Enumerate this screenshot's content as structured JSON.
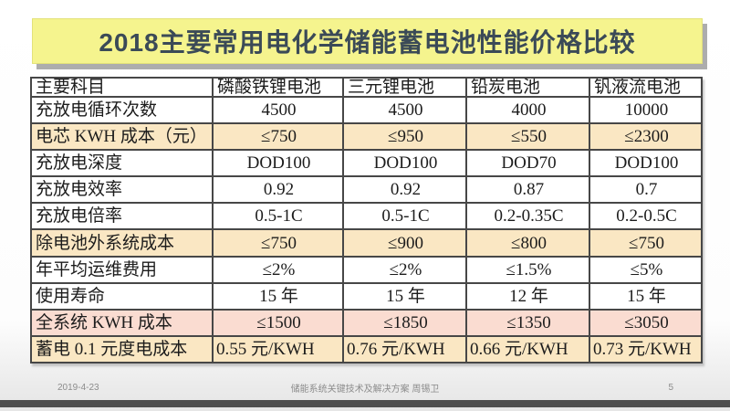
{
  "title": "2018主要常用电化学储能蓄电池性能价格比较",
  "table": {
    "headers": [
      "主要科目",
      "磷酸铁锂电池",
      "三元锂电池",
      "铅炭电池",
      "钒液流电池"
    ],
    "rows": [
      {
        "label": "充放电循环次数",
        "values": [
          "4500",
          "4500",
          "4000",
          "10000"
        ]
      },
      {
        "label": "电芯 KWH 成本（元）",
        "values": [
          "≤750",
          "≤950",
          "≤550",
          "≤2300"
        ]
      },
      {
        "label": "充放电深度",
        "values": [
          "DOD100",
          "DOD100",
          "DOD70",
          "DOD100"
        ]
      },
      {
        "label": "充放电效率",
        "values": [
          "0.92",
          "0.92",
          "0.87",
          "0.7"
        ]
      },
      {
        "label": "充放电倍率",
        "values": [
          "0.5-1C",
          "0.5-1C",
          "0.2-0.35C",
          "0.2-0.5C"
        ]
      },
      {
        "label": "除电池外系统成本",
        "values": [
          "≤750",
          "≤900",
          "≤800",
          "≤750"
        ]
      },
      {
        "label": "年平均运维费用",
        "values": [
          "≤2%",
          "≤2%",
          "≤1.5%",
          "≤5%"
        ]
      },
      {
        "label": "使用寿命",
        "values": [
          "15 年",
          "15 年",
          "12 年",
          "15 年"
        ]
      },
      {
        "label": "全系统 KWH 成本",
        "values": [
          "≤1500",
          "≤1850",
          "≤1350",
          "≤3050"
        ]
      },
      {
        "label": "蓄电 0.1 元度电成本",
        "values": [
          "0.55 元/KWH",
          "0.76 元/KWH",
          "0.66 元/KWH",
          "0.73 元/KWH"
        ]
      }
    ]
  },
  "footer": {
    "date": "2019-4-23",
    "center": "储能系统关键技术及解决方案 周锡卫",
    "page": "5"
  },
  "colors": {
    "banner_bg": "#f5f48e",
    "title_text": "#3b4a57",
    "row_highlight_tan": "#fae7c3",
    "row_highlight_pink": "#fadcd1",
    "table_border": "#474747",
    "bottom_bar": "#4e4e4e"
  }
}
